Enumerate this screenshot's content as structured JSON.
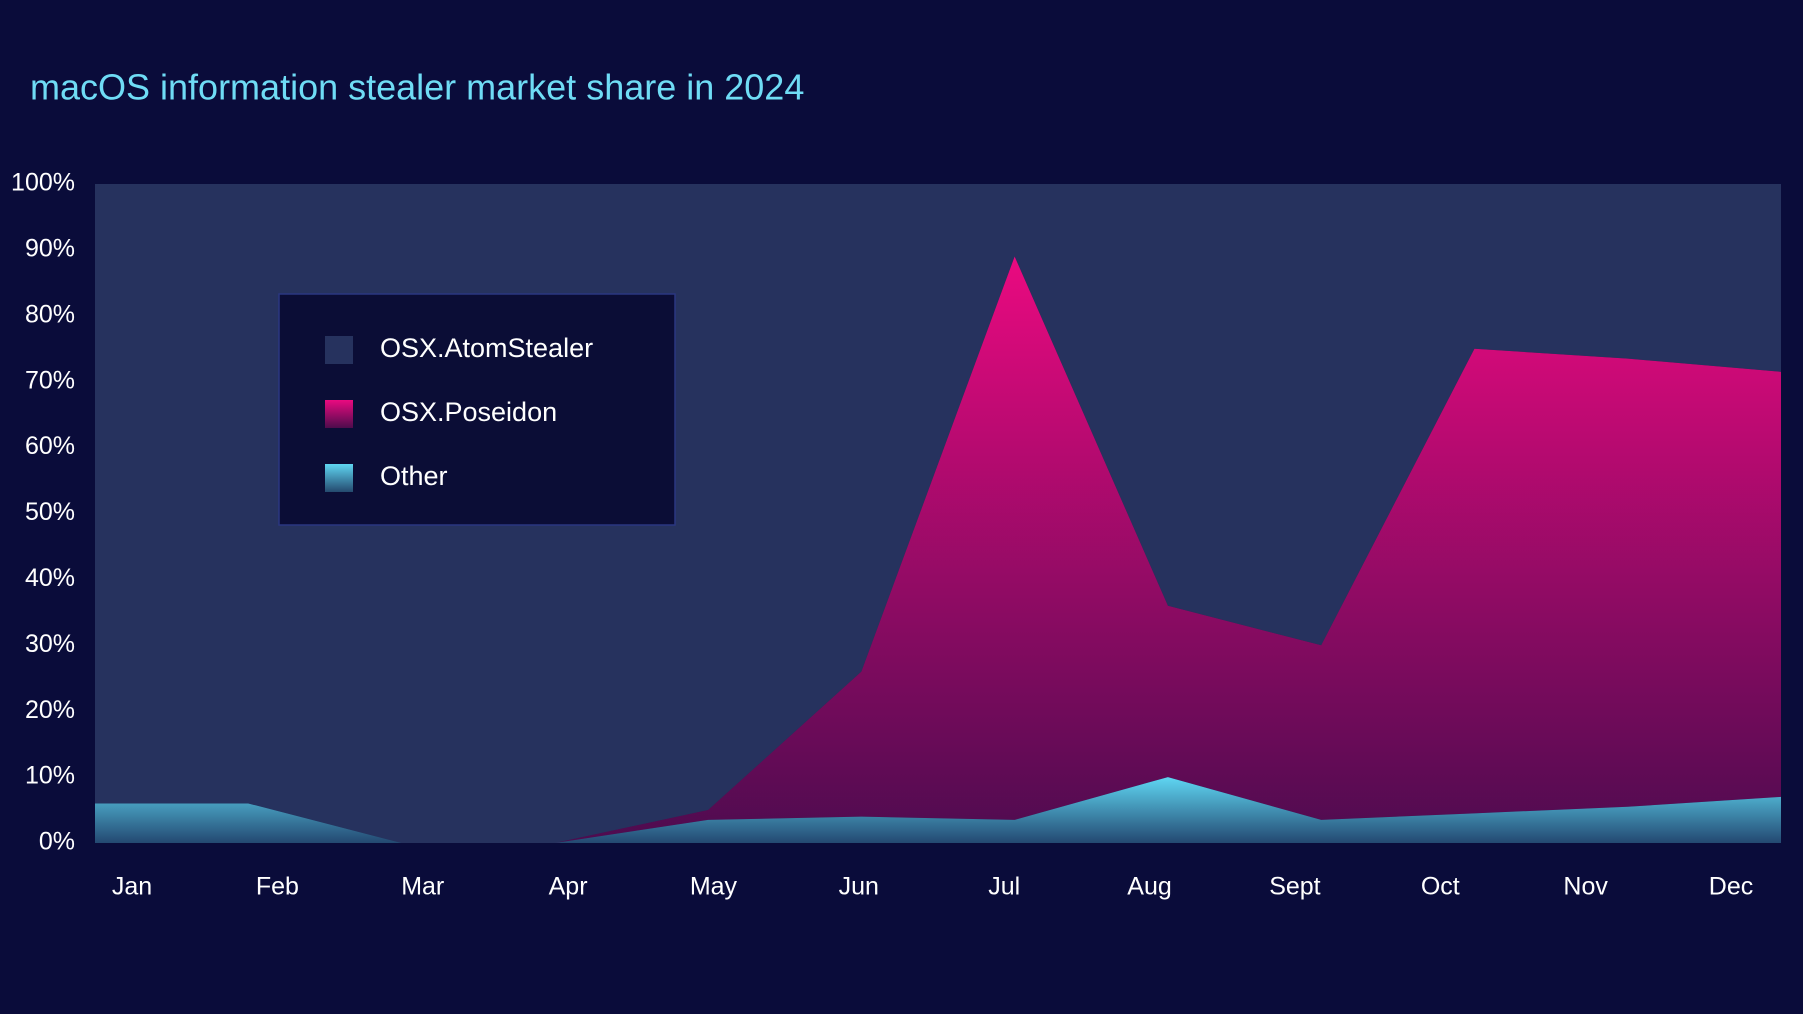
{
  "chart_data": {
    "type": "stacked-area",
    "title": "macOS information stealer market share in 2024",
    "categories": [
      "Jan",
      "Feb",
      "Mar",
      "Apr",
      "May",
      "Jun",
      "Jul",
      "Aug",
      "Sept",
      "Oct",
      "Nov",
      "Dec"
    ],
    "series": [
      {
        "name": "Other",
        "color": "#5fd6f2",
        "values": [
          6,
          6,
          0,
          0,
          3.5,
          4,
          3.5,
          10,
          3.5,
          4.5,
          5.5,
          7
        ]
      },
      {
        "name": "OSX.Poseidon",
        "color": "#ea0a80",
        "values": [
          0,
          0,
          0,
          0,
          1.5,
          22,
          85.5,
          26,
          26.5,
          70.5,
          68,
          64.5
        ]
      },
      {
        "name": "OSX.AtomStealer",
        "color": "#26325e",
        "values": [
          94,
          94,
          100,
          100,
          95,
          74,
          11,
          64,
          70,
          25,
          26.5,
          28.5
        ]
      }
    ],
    "ylim": [
      0,
      100
    ],
    "yticks": [
      {
        "value": 0,
        "label": "0%"
      },
      {
        "value": 10,
        "label": "10%"
      },
      {
        "value": 20,
        "label": "20%"
      },
      {
        "value": 30,
        "label": "30%"
      },
      {
        "value": 40,
        "label": "40%"
      },
      {
        "value": 50,
        "label": "50%"
      },
      {
        "value": 60,
        "label": "60%"
      },
      {
        "value": 70,
        "label": "70%"
      },
      {
        "value": 80,
        "label": "80%"
      },
      {
        "value": 90,
        "label": "90%"
      },
      {
        "value": 100,
        "label": "100%"
      }
    ],
    "legend": "upper-left"
  }
}
